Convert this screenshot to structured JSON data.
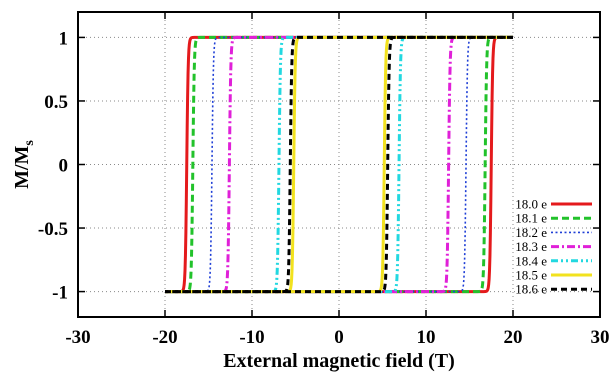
{
  "chart_data": {
    "type": "line",
    "title": "",
    "xlabel": "External magnetic field (T)",
    "ylabel_main": "M/M",
    "ylabel_sub": "s",
    "xlim": [
      -30,
      30
    ],
    "ylim": [
      -1.2,
      1.2
    ],
    "xticks": [
      -30,
      -20,
      -10,
      0,
      10,
      20,
      30
    ],
    "yticks": [
      -1,
      -0.5,
      0,
      0.5,
      1
    ],
    "xtick_labels": [
      "-30",
      "-20",
      "-10",
      "0",
      "10",
      "20",
      "30"
    ],
    "ytick_labels": [
      "-1",
      "-0.5",
      "0",
      "0.5",
      "1"
    ],
    "grid": true,
    "legend_position": "bottom-right",
    "field_range": [
      -20,
      20
    ],
    "series": [
      {
        "name": "18.0 e",
        "color": "#e41a1c",
        "dash": "solid",
        "coercive_field": 17.5,
        "saturation": 1
      },
      {
        "name": "18.1 e",
        "color": "#22c22b",
        "dash": "dashed",
        "coercive_field": 16.8,
        "saturation": 1
      },
      {
        "name": "18.2 e",
        "color": "#1f3fd6",
        "dash": "dotted",
        "coercive_field": 14.6,
        "saturation": 1
      },
      {
        "name": "18.3 e",
        "color": "#e020d8",
        "dash": "dashdot",
        "coercive_field": 12.6,
        "saturation": 1
      },
      {
        "name": "18.4 e",
        "color": "#22d8e0",
        "dash": "dashdotdot",
        "coercive_field": 6.9,
        "saturation": 1
      },
      {
        "name": "18.5 e",
        "color": "#f2e21e",
        "dash": "solid",
        "coercive_field": 5.2,
        "saturation": 1
      },
      {
        "name": "18.6 e",
        "color": "#000000",
        "dash": "longdash",
        "coercive_field": 5.6,
        "saturation": 1
      }
    ]
  }
}
